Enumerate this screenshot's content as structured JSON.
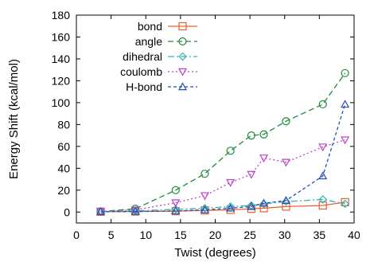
{
  "chart_data": {
    "type": "line",
    "xlabel": "Twist (degrees)",
    "ylabel": "Energy Shift (kcal/mol)",
    "xlim": [
      0,
      40
    ],
    "ylim": [
      -10,
      180
    ],
    "x_ticks": [
      0,
      5,
      10,
      15,
      20,
      25,
      30,
      35,
      40
    ],
    "y_ticks": [
      0,
      20,
      40,
      60,
      80,
      100,
      120,
      140,
      160,
      180
    ],
    "grid": false,
    "legend_position": "top-left",
    "series": [
      {
        "name": "bond",
        "color": "#e8602c",
        "marker": "square",
        "dash": "",
        "points": [
          [
            3.5,
            0.3
          ],
          [
            8.5,
            0.5
          ],
          [
            14.3,
            0.8
          ],
          [
            18.5,
            1.5
          ],
          [
            22.2,
            2.0
          ],
          [
            25.2,
            3.0
          ],
          [
            27.0,
            3.5
          ],
          [
            30.2,
            5.0
          ],
          [
            35.5,
            6.0
          ],
          [
            38.7,
            9.0
          ]
        ]
      },
      {
        "name": "angle",
        "color": "#1e8c3a",
        "marker": "circle",
        "dash": "7,4",
        "points": [
          [
            3.5,
            0.5
          ],
          [
            8.5,
            3.0
          ],
          [
            14.3,
            20.0
          ],
          [
            18.5,
            35.0
          ],
          [
            22.2,
            56.0
          ],
          [
            25.2,
            70.0
          ],
          [
            27.0,
            71.0
          ],
          [
            30.2,
            83.0
          ],
          [
            35.5,
            98.5
          ],
          [
            38.7,
            127.0
          ]
        ]
      },
      {
        "name": "dihedral",
        "color": "#33b5b5",
        "marker": "diamond",
        "dash": "8,3,2,3",
        "points": [
          [
            3.5,
            0.5
          ],
          [
            8.5,
            1.0
          ],
          [
            14.3,
            2.5
          ],
          [
            18.5,
            3.5
          ],
          [
            22.2,
            5.0
          ],
          [
            25.2,
            6.0
          ],
          [
            27.0,
            7.5
          ],
          [
            30.2,
            9.5
          ],
          [
            35.5,
            11.5
          ],
          [
            38.7,
            7.5
          ]
        ]
      },
      {
        "name": "coulomb",
        "color": "#c040c8",
        "marker": "triangle-down",
        "dash": "2,3",
        "points": [
          [
            3.5,
            0.5
          ],
          [
            8.5,
            2.0
          ],
          [
            14.3,
            8.5
          ],
          [
            18.5,
            15.0
          ],
          [
            22.2,
            27.0
          ],
          [
            25.2,
            34.5
          ],
          [
            27.0,
            49.5
          ],
          [
            30.2,
            45.5
          ],
          [
            35.5,
            59.5
          ],
          [
            38.7,
            66.0
          ]
        ]
      },
      {
        "name": "H-bond",
        "color": "#1f4fb8",
        "marker": "triangle-up",
        "dash": "4,3",
        "points": [
          [
            3.5,
            0.3
          ],
          [
            8.5,
            0.5
          ],
          [
            14.3,
            1.0
          ],
          [
            18.5,
            2.0
          ],
          [
            22.2,
            3.5
          ],
          [
            25.2,
            5.0
          ],
          [
            27.0,
            8.0
          ],
          [
            30.2,
            10.5
          ],
          [
            35.5,
            33.0
          ],
          [
            38.7,
            98.5
          ]
        ]
      }
    ]
  }
}
